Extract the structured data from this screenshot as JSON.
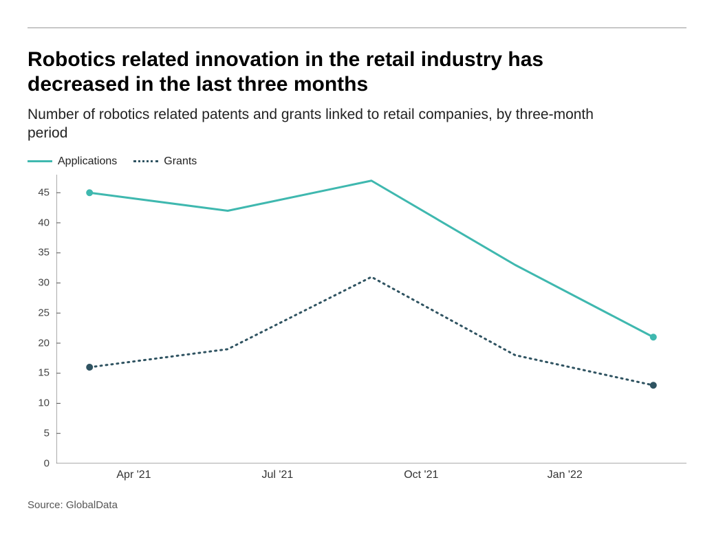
{
  "title": "Robotics related innovation in the retail industry has decreased in the last three months",
  "subtitle": "Number of robotics related patents and grants linked to retail companies, by three-month period",
  "source": "Source: GlobalData",
  "legend": {
    "applications": {
      "label": "Applications",
      "color": "#3fb8af",
      "style": "solid"
    },
    "grants": {
      "label": "Grants",
      "color": "#2f5361",
      "style": "dotted"
    }
  },
  "chart": {
    "type": "line",
    "background_color": "#ffffff",
    "axis_color": "#555555",
    "yaxis": {
      "min": 0,
      "max": 48,
      "ticks": [
        0,
        5,
        10,
        15,
        20,
        25,
        30,
        35,
        40,
        45
      ],
      "label_fontsize": 15,
      "label_color": "#444444"
    },
    "xaxis": {
      "ticks": [
        {
          "label": "Apr '21",
          "pos": 0.14
        },
        {
          "label": "Jul '21",
          "pos": 0.4
        },
        {
          "label": "Oct '21",
          "pos": 0.66
        },
        {
          "label": "Jan '22",
          "pos": 0.92
        }
      ],
      "label_fontsize": 16,
      "label_color": "#333333"
    },
    "series": {
      "applications": {
        "color": "#3fb8af",
        "line_width": 3,
        "dash": "none",
        "marker_r": 5,
        "points": [
          {
            "x": 0.06,
            "y": 45,
            "marker": true
          },
          {
            "x": 0.31,
            "y": 42,
            "marker": false
          },
          {
            "x": 0.57,
            "y": 47,
            "marker": false
          },
          {
            "x": 0.83,
            "y": 33,
            "marker": false
          },
          {
            "x": 1.08,
            "y": 21,
            "marker": true
          }
        ]
      },
      "grants": {
        "color": "#2f5361",
        "line_width": 3,
        "dash": "2 6",
        "marker_r": 5,
        "points": [
          {
            "x": 0.06,
            "y": 16,
            "marker": true
          },
          {
            "x": 0.31,
            "y": 19,
            "marker": false
          },
          {
            "x": 0.57,
            "y": 31,
            "marker": false
          },
          {
            "x": 0.83,
            "y": 18,
            "marker": false
          },
          {
            "x": 1.08,
            "y": 13,
            "marker": true
          }
        ]
      }
    }
  }
}
